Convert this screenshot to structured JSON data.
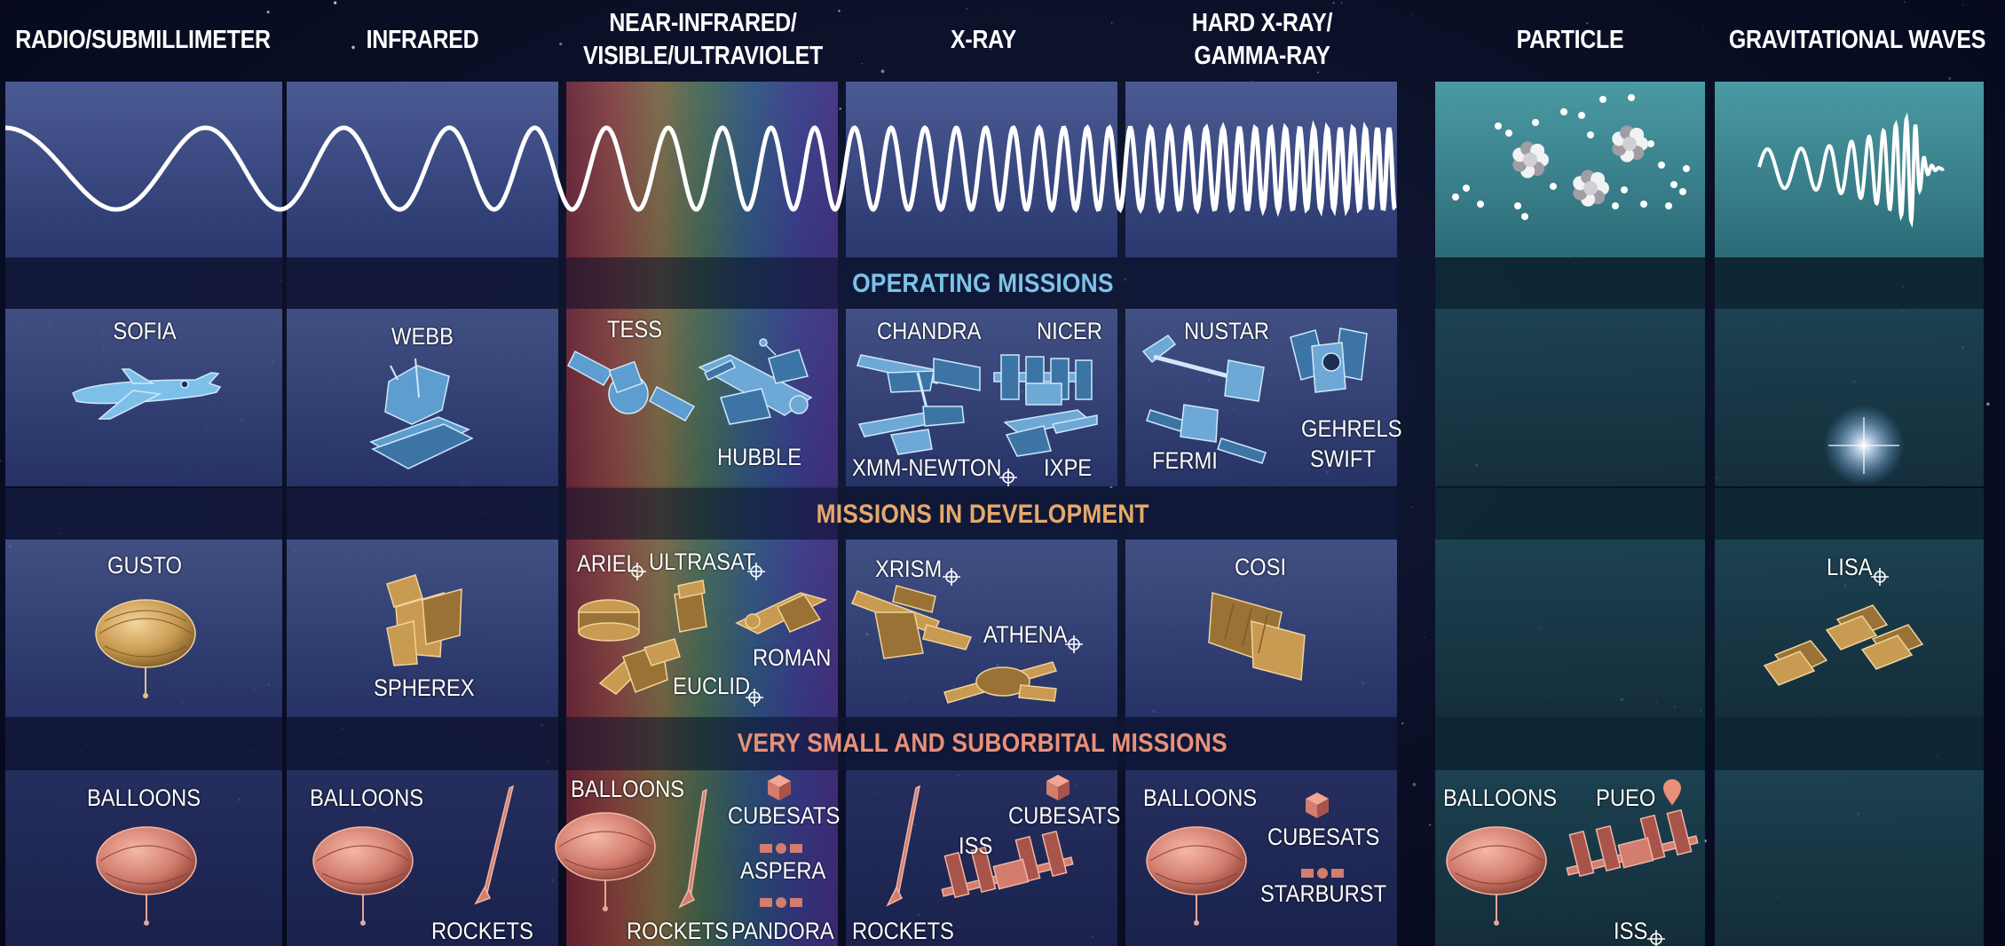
{
  "columns": [
    {
      "id": "radio",
      "title_lines": [
        "RADIO/SUBMILLIMETER"
      ]
    },
    {
      "id": "infrared",
      "title_lines": [
        "INFRARED"
      ]
    },
    {
      "id": "visible",
      "title_lines": [
        "NEAR-INFRARED/",
        "VISIBLE/ULTRAVIOLET"
      ]
    },
    {
      "id": "xray",
      "title_lines": [
        "X-RAY"
      ]
    },
    {
      "id": "gamma",
      "title_lines": [
        "HARD X-RAY/",
        "GAMMA-RAY"
      ]
    },
    {
      "id": "particle",
      "title_lines": [
        "PARTICLE"
      ]
    },
    {
      "id": "gw",
      "title_lines": [
        "GRAVITATIONAL WAVES"
      ]
    }
  ],
  "bands": {
    "operating": {
      "label": "OPERATING MISSIONS",
      "color": "#7cc3e8"
    },
    "development": {
      "label": "MISSIONS IN DEVELOPMENT",
      "color": "#e6a86a"
    },
    "small": {
      "label": "VERY SMALL AND SUBORBITAL MISSIONS",
      "color": "#e8907a"
    }
  },
  "operating": {
    "sofia": "SOFIA",
    "webb": "WEBB",
    "tess": "TESS",
    "hubble": "HUBBLE",
    "chandra": "CHANDRA",
    "nicer": "NICER",
    "xmm": "XMM-NEWTON",
    "ixpe": "IXPE",
    "nustar": "NUSTAR",
    "fermi": "FERMI",
    "gehrels": "GEHRELS",
    "swift": "SWIFT"
  },
  "development": {
    "gusto": "GUSTO",
    "spherex": "SPHEREX",
    "ariel": "ARIEL",
    "ultrasat": "ULTRASAT",
    "roman": "ROMAN",
    "euclid": "EUCLID",
    "xrism": "XRISM",
    "athena": "ATHENA",
    "cosi": "COSI",
    "lisa": "LISA"
  },
  "small": {
    "radio_balloons": "BALLOONS",
    "ir_balloons": "BALLOONS",
    "ir_rockets": "ROCKETS",
    "vis_balloons": "BALLOONS",
    "vis_rockets": "ROCKETS",
    "vis_cubesats": "CUBESATS",
    "aspera": "ASPERA",
    "pandora": "PANDORA",
    "xray_rockets": "ROCKETS",
    "xray_cubesats": "CUBESATS",
    "xray_iss": "ISS",
    "gamma_balloons": "BALLOONS",
    "gamma_cubesats": "CUBESATS",
    "starburst": "STARBURST",
    "part_balloons": "BALLOONS",
    "pueo": "PUEO",
    "part_iss": "ISS"
  },
  "colors": {
    "operating_art": "#6fb4e0",
    "development_art": "#c99a52",
    "small_art": "#d27d6e",
    "em_panel": "#3a4a7e",
    "teal_panel": "#2f6f78"
  }
}
